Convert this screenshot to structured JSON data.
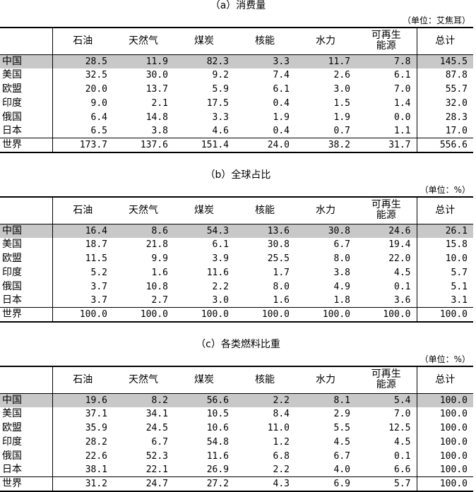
{
  "columns": [
    "石油",
    "天然气",
    "煤炭",
    "核能",
    "水力",
    "可再生能源",
    "总计"
  ],
  "columns_display": [
    "石油",
    "天然气",
    "煤炭",
    "核能",
    "水力",
    "可再生\n能源",
    "总计"
  ],
  "tables": [
    {
      "title": "（a）消费量",
      "unit": "（单位：艾焦耳）",
      "rows": [
        {
          "name": "中国",
          "values": [
            "28.5",
            "11.9",
            "82.3",
            "3.3",
            "11.7",
            "7.8",
            "145.5"
          ]
        },
        {
          "name": "美国",
          "values": [
            "32.5",
            "30.0",
            "9.2",
            "7.4",
            "2.6",
            "6.1",
            "87.8"
          ]
        },
        {
          "name": "欧盟",
          "values": [
            "20.0",
            "13.7",
            "5.9",
            "6.1",
            "3.0",
            "7.0",
            "55.7"
          ]
        },
        {
          "name": "印度",
          "values": [
            "9.0",
            "2.1",
            "17.5",
            "0.4",
            "1.5",
            "1.4",
            "32.0"
          ]
        },
        {
          "name": "俄国",
          "values": [
            "6.4",
            "14.8",
            "3.3",
            "1.9",
            "1.9",
            "0.0",
            "28.3"
          ]
        },
        {
          "name": "日本",
          "values": [
            "6.5",
            "3.8",
            "4.6",
            "0.4",
            "0.7",
            "1.1",
            "17.0"
          ]
        },
        {
          "name": "世界",
          "values": [
            "173.7",
            "137.6",
            "151.4",
            "24.0",
            "38.2",
            "31.7",
            "556.6"
          ]
        }
      ]
    },
    {
      "title": "（b）全球占比",
      "unit": "（单位：%）",
      "rows": [
        {
          "name": "中国",
          "values": [
            "16.4",
            "8.6",
            "54.3",
            "13.6",
            "30.8",
            "24.6",
            "26.1"
          ]
        },
        {
          "name": "美国",
          "values": [
            "18.7",
            "21.8",
            "6.1",
            "30.8",
            "6.7",
            "19.4",
            "15.8"
          ]
        },
        {
          "name": "欧盟",
          "values": [
            "11.5",
            "9.9",
            "3.9",
            "25.5",
            "8.0",
            "22.0",
            "10.0"
          ]
        },
        {
          "name": "印度",
          "values": [
            "5.2",
            "1.6",
            "11.6",
            "1.7",
            "3.8",
            "4.5",
            "5.7"
          ]
        },
        {
          "name": "俄国",
          "values": [
            "3.7",
            "10.8",
            "2.2",
            "8.0",
            "4.9",
            "0.1",
            "5.1"
          ]
        },
        {
          "name": "日本",
          "values": [
            "3.7",
            "2.7",
            "3.0",
            "1.6",
            "1.8",
            "3.6",
            "3.1"
          ]
        },
        {
          "name": "世界",
          "values": [
            "100.0",
            "100.0",
            "100.0",
            "100.0",
            "100.0",
            "100.0",
            "100.0"
          ]
        }
      ]
    },
    {
      "title": "（c）各类燃料比重",
      "unit": "（单位：%）",
      "rows": [
        {
          "name": "中国",
          "values": [
            "19.6",
            "8.2",
            "56.6",
            "2.2",
            "8.1",
            "5.4",
            "100.0"
          ]
        },
        {
          "name": "美国",
          "values": [
            "37.1",
            "34.1",
            "10.5",
            "8.4",
            "2.9",
            "7.0",
            "100.0"
          ]
        },
        {
          "name": "欧盟",
          "values": [
            "35.9",
            "24.5",
            "10.6",
            "11.0",
            "5.5",
            "12.5",
            "100.0"
          ]
        },
        {
          "name": "印度",
          "values": [
            "28.2",
            "6.7",
            "54.8",
            "1.2",
            "4.5",
            "4.5",
            "100.0"
          ]
        },
        {
          "name": "俄国",
          "values": [
            "22.6",
            "52.3",
            "11.6",
            "6.8",
            "6.7",
            "0.1",
            "100.0"
          ]
        },
        {
          "name": "日本",
          "values": [
            "38.1",
            "22.1",
            "26.9",
            "2.2",
            "4.0",
            "6.6",
            "100.0"
          ]
        },
        {
          "name": "世界",
          "values": [
            "31.2",
            "24.7",
            "27.2",
            "4.3",
            "6.9",
            "5.7",
            "100.0"
          ]
        }
      ]
    }
  ],
  "highlight_color": "#c8c8c8"
}
